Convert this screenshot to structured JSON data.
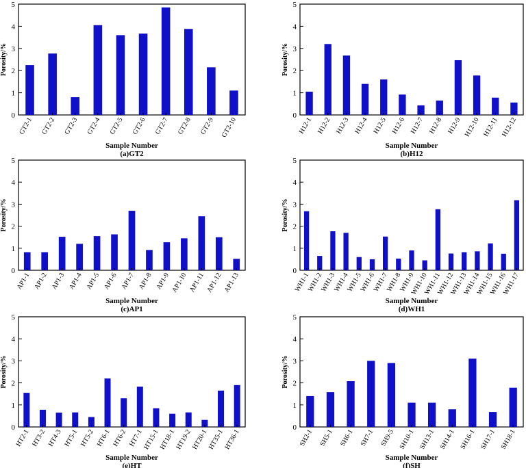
{
  "chart_data": [
    {
      "id": "GT2",
      "type": "bar",
      "caption": "(a)GT2",
      "xlabel": "Sample Number",
      "ylabel": "Porosity/%",
      "ylim": [
        0,
        5
      ],
      "yticks": [
        0,
        1,
        2,
        3,
        4,
        5
      ],
      "bar_color": "#1010c8",
      "categories": [
        "GT2-1",
        "GT2-2",
        "GT2-3",
        "GT2-4",
        "GT2-5",
        "GT2-6",
        "GT2-7",
        "GT2-8",
        "GT2-9",
        "GT2-10"
      ],
      "values": [
        2.25,
        2.77,
        0.8,
        4.05,
        3.6,
        3.67,
        4.85,
        3.88,
        2.15,
        1.1
      ]
    },
    {
      "id": "H12",
      "type": "bar",
      "caption": "(b)H12",
      "xlabel": "Sample Number",
      "ylabel": "Porosity/%",
      "ylim": [
        0,
        5
      ],
      "yticks": [
        0,
        1,
        2,
        3,
        4,
        5
      ],
      "bar_color": "#1010c8",
      "categories": [
        "H12-1",
        "H12-2",
        "H12-3",
        "H12-4",
        "H12-5",
        "H12-6",
        "H12-7",
        "H12-8",
        "H12-9",
        "H12-10",
        "H12-11",
        "H12-12"
      ],
      "values": [
        1.05,
        3.2,
        2.68,
        1.4,
        1.6,
        0.92,
        0.43,
        0.65,
        2.47,
        1.78,
        0.78,
        0.56
      ]
    },
    {
      "id": "AP1",
      "type": "bar",
      "caption": "(c)AP1",
      "xlabel": "Sample Number",
      "ylabel": "Porosity/%",
      "ylim": [
        0,
        5
      ],
      "yticks": [
        0,
        1,
        2,
        3,
        4,
        5
      ],
      "bar_color": "#1010c8",
      "categories": [
        "AP1-1",
        "AP1-2",
        "AP1-3",
        "AP1-4",
        "AP1-5",
        "AP1-6",
        "AP1-7",
        "AP1-8",
        "AP1-9",
        "AP1-10",
        "AP1-11",
        "AP1-12",
        "AP1-13"
      ],
      "values": [
        0.82,
        0.82,
        1.52,
        1.2,
        1.55,
        1.63,
        2.7,
        0.92,
        1.27,
        1.45,
        2.45,
        1.5,
        0.52
      ]
    },
    {
      "id": "WH1",
      "type": "bar",
      "caption": "(d)WH1",
      "xlabel": "Sample Number",
      "ylabel": "Porosity/%",
      "ylim": [
        0,
        5
      ],
      "yticks": [
        0,
        1,
        2,
        3,
        4,
        5
      ],
      "bar_color": "#1010c8",
      "categories": [
        "WH1-1",
        "WH1-2",
        "WH1-3",
        "WH1-4",
        "WH1-5",
        "WH1-6",
        "WH1-7",
        "WH1-8",
        "WH1-9",
        "WH1-10",
        "WH1-11",
        "WH1-12",
        "WH1-13",
        "WH1-14",
        "WH1-15",
        "WH1-16",
        "WH1-17"
      ],
      "values": [
        2.68,
        0.65,
        1.77,
        1.7,
        0.6,
        0.5,
        1.53,
        0.53,
        0.9,
        0.45,
        2.77,
        0.76,
        0.82,
        0.86,
        1.22,
        0.75,
        3.18
      ]
    },
    {
      "id": "HT",
      "type": "bar",
      "caption": "(e)HT",
      "xlabel": "Sample Number",
      "ylabel": "Porosity/%",
      "ylim": [
        0,
        5
      ],
      "yticks": [
        0,
        1,
        2,
        3,
        4,
        5
      ],
      "bar_color": "#1010c8",
      "categories": [
        "HT2-1",
        "HT3-2",
        "HT4-3",
        "HT5-1",
        "HT5-2",
        "HT6-1",
        "HT6-2",
        "HT7-1",
        "HT15-1",
        "HT18-1",
        "HT19-2",
        "HT20-1",
        "HT35-1",
        "HT36-1"
      ],
      "values": [
        1.55,
        0.78,
        0.65,
        0.66,
        0.45,
        2.2,
        1.3,
        1.83,
        0.85,
        0.6,
        0.66,
        0.32,
        1.65,
        1.9
      ]
    },
    {
      "id": "SH",
      "type": "bar",
      "caption": "(f)SH",
      "xlabel": "Sample Number",
      "ylabel": "Porosity/%",
      "ylim": [
        0,
        5
      ],
      "yticks": [
        0,
        1,
        2,
        3,
        4,
        5
      ],
      "bar_color": "#1010c8",
      "categories": [
        "SH2-1",
        "SH5-1",
        "SH6-1",
        "SH7-1",
        "SH9-5",
        "SH10-1",
        "SH13-1",
        "SH14-1",
        "SH16-1",
        "SH17-1",
        "SH18-1"
      ],
      "values": [
        1.4,
        1.58,
        2.08,
        3.0,
        2.9,
        1.1,
        1.1,
        0.8,
        3.1,
        0.68,
        1.78
      ]
    }
  ]
}
